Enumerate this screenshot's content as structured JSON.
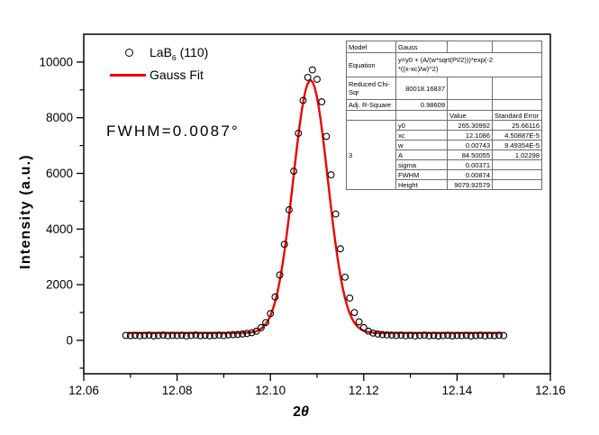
{
  "colors": {
    "fit_line": "#ee0000",
    "data_marker": "#000000",
    "text": "#000000",
    "background": "#ffffff"
  },
  "legend": {
    "items": [
      {
        "marker": "open-circle",
        "label_prefix": "LaB",
        "label_sub": "6",
        "label_suffix": " (110)"
      },
      {
        "marker": "red-line",
        "label": "Gauss Fit"
      }
    ]
  },
  "annotation": {
    "text": "FWHM=0.0087°"
  },
  "axes": {
    "x_title_prefix": "2",
    "x_title_theta": "θ",
    "y_title": "Intensity (a.u.)"
  },
  "chart_data": {
    "type": "scatter",
    "title": "",
    "xlabel": "2θ",
    "ylabel": "Intensity (a.u.)",
    "xlim": [
      12.06,
      12.16
    ],
    "ylim": [
      -1200,
      11000
    ],
    "grid": false,
    "legend_position": "top-left-inside",
    "x_ticks": [
      12.06,
      12.08,
      12.1,
      12.12,
      12.14,
      12.16
    ],
    "x_tick_labels": [
      "12.06",
      "12.08",
      "12.10",
      "12.12",
      "12.14",
      "12.16"
    ],
    "x_minor_ticks": [
      12.07,
      12.09,
      12.11,
      12.13,
      12.15
    ],
    "y_ticks": [
      0,
      2000,
      4000,
      6000,
      8000,
      10000
    ],
    "y_tick_labels": [
      "0",
      "2000",
      "4000",
      "6000",
      "8000",
      "10000"
    ],
    "y_minor_ticks": [
      -1000,
      1000,
      3000,
      5000,
      7000,
      9000
    ],
    "series": [
      {
        "name": "LaB6 (110)",
        "type": "scatter-open-circles",
        "color": "#000000",
        "points": [
          [
            12.069,
            178
          ],
          [
            12.07,
            170
          ],
          [
            12.071,
            182
          ],
          [
            12.072,
            165
          ],
          [
            12.073,
            178
          ],
          [
            12.074,
            188
          ],
          [
            12.075,
            162
          ],
          [
            12.076,
            175
          ],
          [
            12.077,
            190
          ],
          [
            12.078,
            168
          ],
          [
            12.079,
            180
          ],
          [
            12.08,
            172
          ],
          [
            12.081,
            186
          ],
          [
            12.082,
            160
          ],
          [
            12.083,
            176
          ],
          [
            12.084,
            192
          ],
          [
            12.085,
            170
          ],
          [
            12.086,
            182
          ],
          [
            12.087,
            165
          ],
          [
            12.088,
            178
          ],
          [
            12.089,
            188
          ],
          [
            12.09,
            172
          ],
          [
            12.091,
            195
          ],
          [
            12.092,
            205
          ],
          [
            12.093,
            215
          ],
          [
            12.094,
            228
          ],
          [
            12.095,
            248
          ],
          [
            12.096,
            275
          ],
          [
            12.097,
            330
          ],
          [
            12.098,
            455
          ],
          [
            12.099,
            640
          ],
          [
            12.1,
            960
          ],
          [
            12.101,
            1560
          ],
          [
            12.102,
            2350
          ],
          [
            12.103,
            3450
          ],
          [
            12.104,
            4690
          ],
          [
            12.105,
            6080
          ],
          [
            12.106,
            7440
          ],
          [
            12.107,
            8620
          ],
          [
            12.108,
            9450
          ],
          [
            12.109,
            9720
          ],
          [
            12.11,
            9380
          ],
          [
            12.111,
            8570
          ],
          [
            12.112,
            7330
          ],
          [
            12.113,
            5950
          ],
          [
            12.114,
            4540
          ],
          [
            12.115,
            3290
          ],
          [
            12.116,
            2270
          ],
          [
            12.117,
            1520
          ],
          [
            12.118,
            1000
          ],
          [
            12.119,
            665
          ],
          [
            12.12,
            455
          ],
          [
            12.121,
            330
          ],
          [
            12.122,
            262
          ],
          [
            12.123,
            228
          ],
          [
            12.124,
            208
          ],
          [
            12.125,
            196
          ],
          [
            12.126,
            188
          ],
          [
            12.127,
            176
          ],
          [
            12.128,
            190
          ],
          [
            12.129,
            168
          ],
          [
            12.13,
            182
          ],
          [
            12.131,
            160
          ],
          [
            12.132,
            175
          ],
          [
            12.133,
            188
          ],
          [
            12.134,
            165
          ],
          [
            12.135,
            178
          ],
          [
            12.136,
            158
          ],
          [
            12.137,
            172
          ],
          [
            12.138,
            185
          ],
          [
            12.139,
            162
          ],
          [
            12.14,
            176
          ],
          [
            12.141,
            168
          ],
          [
            12.142,
            182
          ],
          [
            12.143,
            158
          ],
          [
            12.144,
            174
          ],
          [
            12.145,
            186
          ],
          [
            12.146,
            164
          ],
          [
            12.147,
            178
          ],
          [
            12.148,
            170
          ],
          [
            12.149,
            183
          ],
          [
            12.15,
            172
          ]
        ]
      },
      {
        "name": "Gauss Fit",
        "type": "gaussian-fit-line",
        "color": "#ee0000",
        "x_range": [
          12.0695,
          12.1495
        ],
        "params": {
          "y0": 265.30992,
          "xc": 12.1086,
          "w": 0.00743,
          "height": 9079.92579
        }
      }
    ]
  },
  "fit_table": {
    "header_rows": [
      {
        "label": "Model",
        "value": "Gauss"
      },
      {
        "label": "Equation",
        "value": "y=y0 + (A/(w*sqrt(PI/2)))*exp(-2\n*((x-xc)/w)^2)"
      },
      {
        "label": "Reduced Chi-Sqr",
        "value": "80018.16837"
      },
      {
        "label": "Adj. R-Square",
        "value": "0.98609"
      }
    ],
    "col_headers": [
      "Value",
      "Standard Error"
    ],
    "dataset_label": "3",
    "params": [
      {
        "name": "y0",
        "value": "265.30992",
        "std_error": "25.66116"
      },
      {
        "name": "xc",
        "value": "12.1086",
        "std_error": "4.50887E-5"
      },
      {
        "name": "w",
        "value": "0.00743",
        "std_error": "9.49354E-5"
      },
      {
        "name": "A",
        "value": "84.50055",
        "std_error": "1.02298"
      },
      {
        "name": "sigma",
        "value": "0.00371",
        "std_error": ""
      },
      {
        "name": "FWHM",
        "value": "0.00874",
        "std_error": ""
      },
      {
        "name": "Height",
        "value": "9079.92579",
        "std_error": ""
      }
    ]
  }
}
